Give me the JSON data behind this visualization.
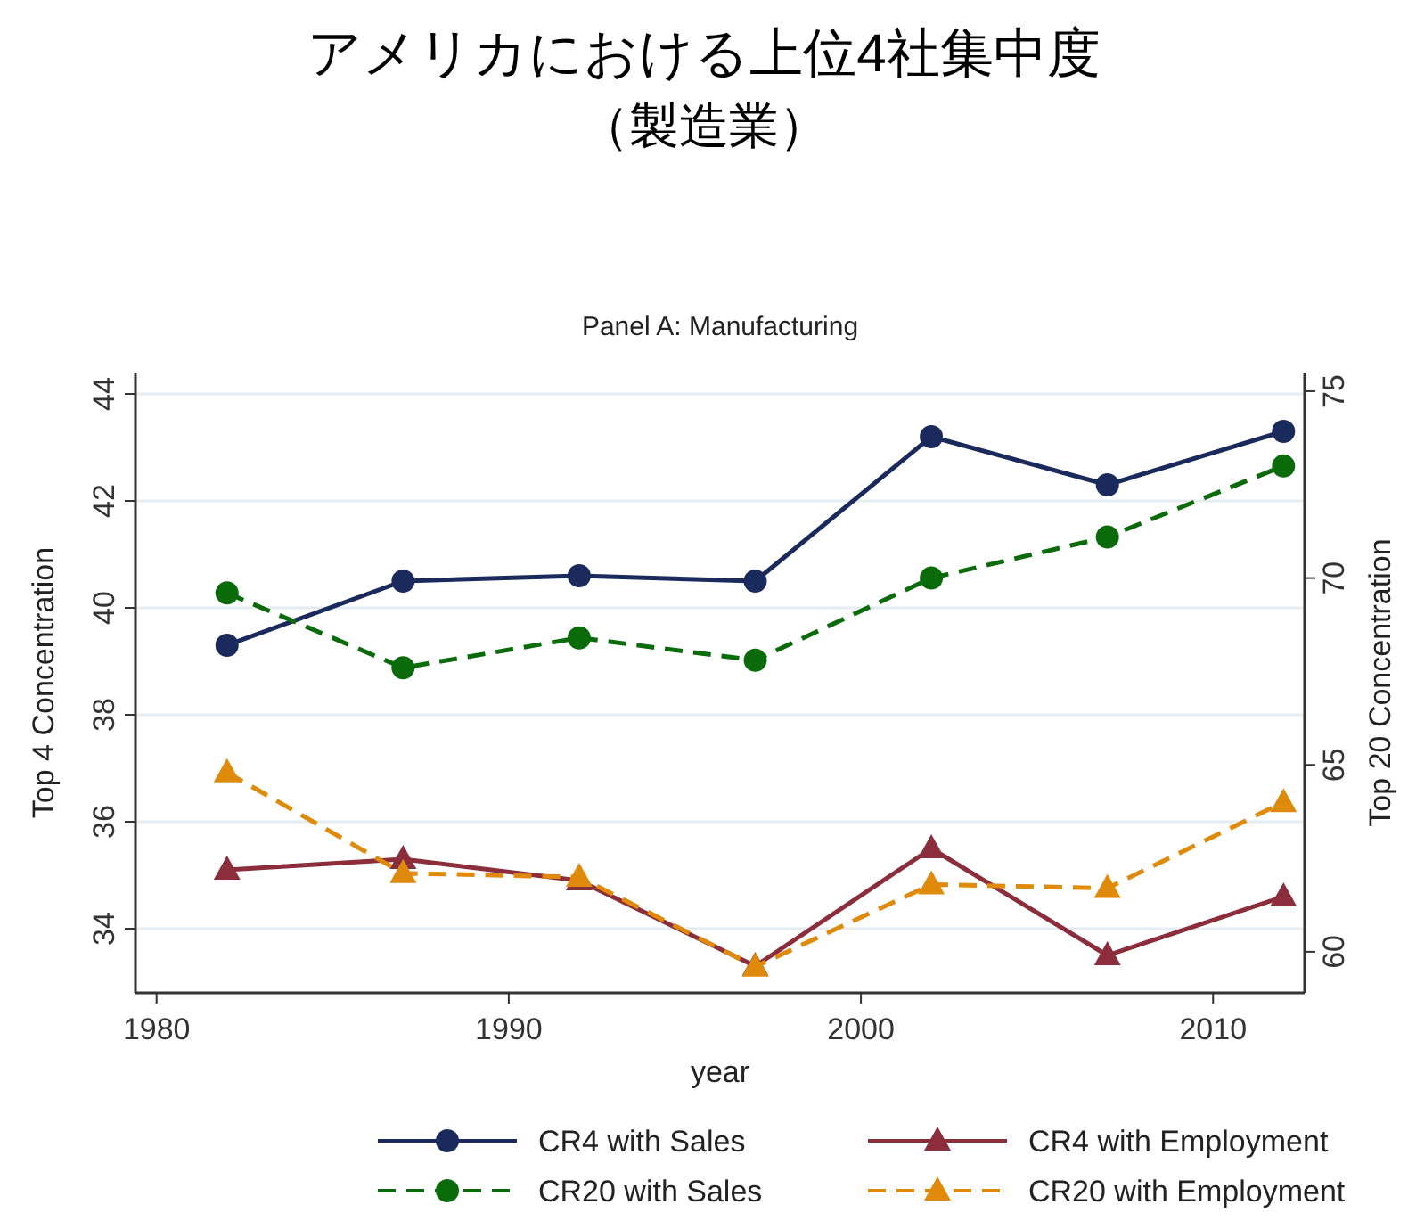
{
  "chart_data": {
    "type": "line",
    "title": "アメリカにおける上位4社集中度",
    "subtitle": "（製造業）",
    "annotations": [
      "Panel A: Manufacturing"
    ],
    "xlabel": "year",
    "ylabel": "Top 4 Concentration",
    "y2label": "Top 20 Concentration",
    "x": [
      1982,
      1987,
      1992,
      1997,
      2002,
      2007,
      2012
    ],
    "xlim": [
      1979.4,
      2012.6
    ],
    "xticks": [
      1980,
      1990,
      2000,
      2010
    ],
    "ylim": [
      32.8,
      44.4
    ],
    "yticks": [
      34,
      36,
      38,
      40,
      42,
      44
    ],
    "y2lim": [
      58.9,
      75.5
    ],
    "y2ticks": [
      60,
      65,
      70,
      75
    ],
    "grid": "y",
    "legend": "bottom",
    "series": [
      {
        "name": "CR4 with Sales",
        "color": "#1b2a5c",
        "marker": "circle",
        "line_style": "solid",
        "values": [
          39.3,
          40.5,
          40.6,
          40.5,
          43.2,
          42.3,
          43.3
        ]
      },
      {
        "name": "CR4 with Employment",
        "color": "#8b2d3b",
        "marker": "triangle",
        "line_style": "solid",
        "values": [
          35.1,
          35.3,
          34.9,
          33.3,
          35.5,
          33.5,
          34.6
        ]
      },
      {
        "name": "CR20 with Sales",
        "color": "#0b6b0b",
        "marker": "circle",
        "line_style": "dashed",
        "axis": "y2",
        "values": [
          69.6,
          67.6,
          68.4,
          67.8,
          70.0,
          71.1,
          73.0
        ]
      },
      {
        "name": "CR20 with Employment",
        "color": "#e08a0c",
        "marker": "triangle",
        "line_style": "dashed",
        "axis": "y2",
        "values": [
          64.8,
          62.1,
          62.0,
          59.6,
          61.8,
          61.7,
          64.0
        ]
      }
    ]
  }
}
